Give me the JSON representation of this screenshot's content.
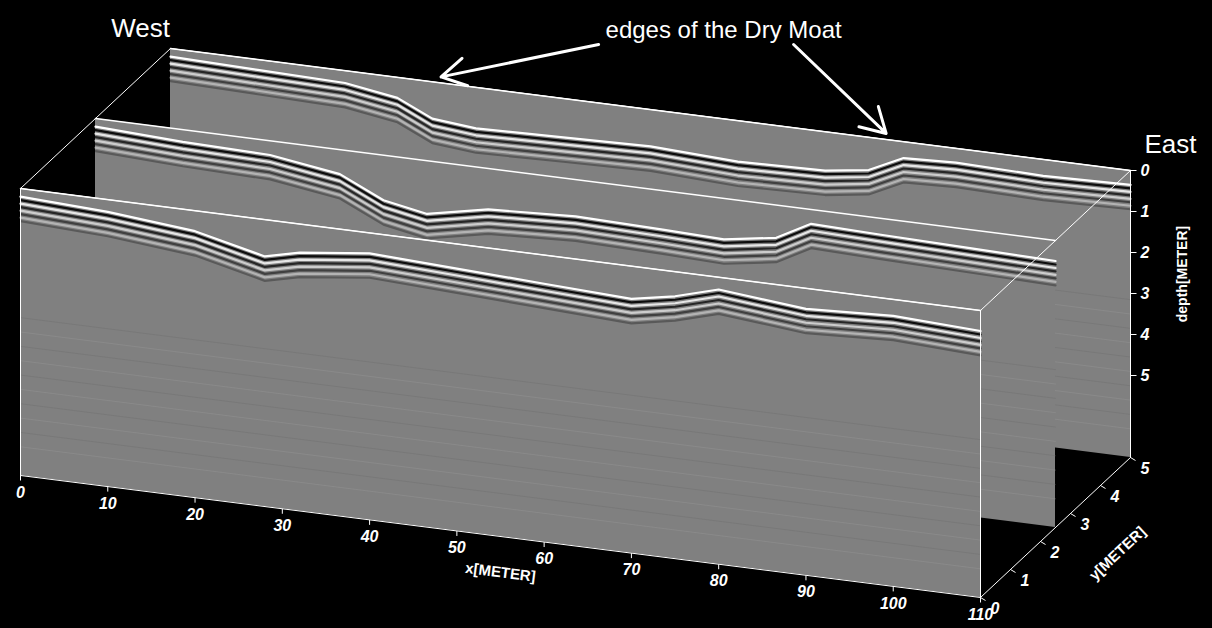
{
  "chart_data": {
    "type": "radargram",
    "color": "#808080",
    "xlabel": "x[METER]",
    "ylabel": "y[METER]",
    "zlabel": "depth[METER]",
    "xlim": [
      0,
      110
    ],
    "xticks": [
      0,
      10,
      20,
      30,
      40,
      50,
      60,
      70,
      80,
      90,
      100,
      110
    ],
    "ylim": [
      0,
      5
    ],
    "yticks": [
      0,
      1,
      2,
      3,
      4,
      5
    ],
    "zlim": [
      0,
      7
    ],
    "zticks": [
      0,
      1,
      2,
      3,
      4,
      5
    ],
    "annotations": [
      {
        "text": "West",
        "x": 0,
        "y": 5
      },
      {
        "text": "East",
        "x": 110,
        "y": 5
      },
      {
        "text": "edges of the Dry Moat",
        "points": [
          {
            "x": 31,
            "y": 5,
            "depth": 0
          },
          {
            "x": 82,
            "y": 5,
            "depth": 0
          }
        ]
      }
    ],
    "profiles": [
      {
        "y": 5,
        "reflector": {
          "x": [
            0,
            10,
            20,
            26,
            30,
            35,
            45,
            55,
            65,
            75,
            80,
            84,
            90,
            100,
            110
          ],
          "depth": [
            0.2,
            0.25,
            0.3,
            0.5,
            0.9,
            1.0,
            0.95,
            0.9,
            1.0,
            0.95,
            0.8,
            0.4,
            0.35,
            0.4,
            0.35
          ]
        }
      },
      {
        "y": 2.5,
        "reflector": {
          "x": [
            0,
            10,
            20,
            28,
            33,
            38,
            45,
            55,
            65,
            72,
            78,
            82,
            90,
            100,
            110
          ],
          "depth": [
            0.2,
            0.3,
            0.35,
            0.6,
            1.1,
            1.3,
            1.0,
            0.9,
            0.95,
            1.0,
            0.8,
            0.35,
            0.4,
            0.45,
            0.5
          ]
        }
      },
      {
        "y": 0,
        "reflector": {
          "x": [
            0,
            10,
            20,
            28,
            32,
            40,
            50,
            60,
            70,
            75,
            80,
            90,
            100,
            110
          ],
          "depth": [
            0.2,
            0.3,
            0.5,
            0.9,
            0.7,
            0.5,
            0.6,
            0.7,
            0.8,
            0.6,
            0.3,
            0.5,
            0.4,
            0.5
          ]
        }
      }
    ]
  }
}
